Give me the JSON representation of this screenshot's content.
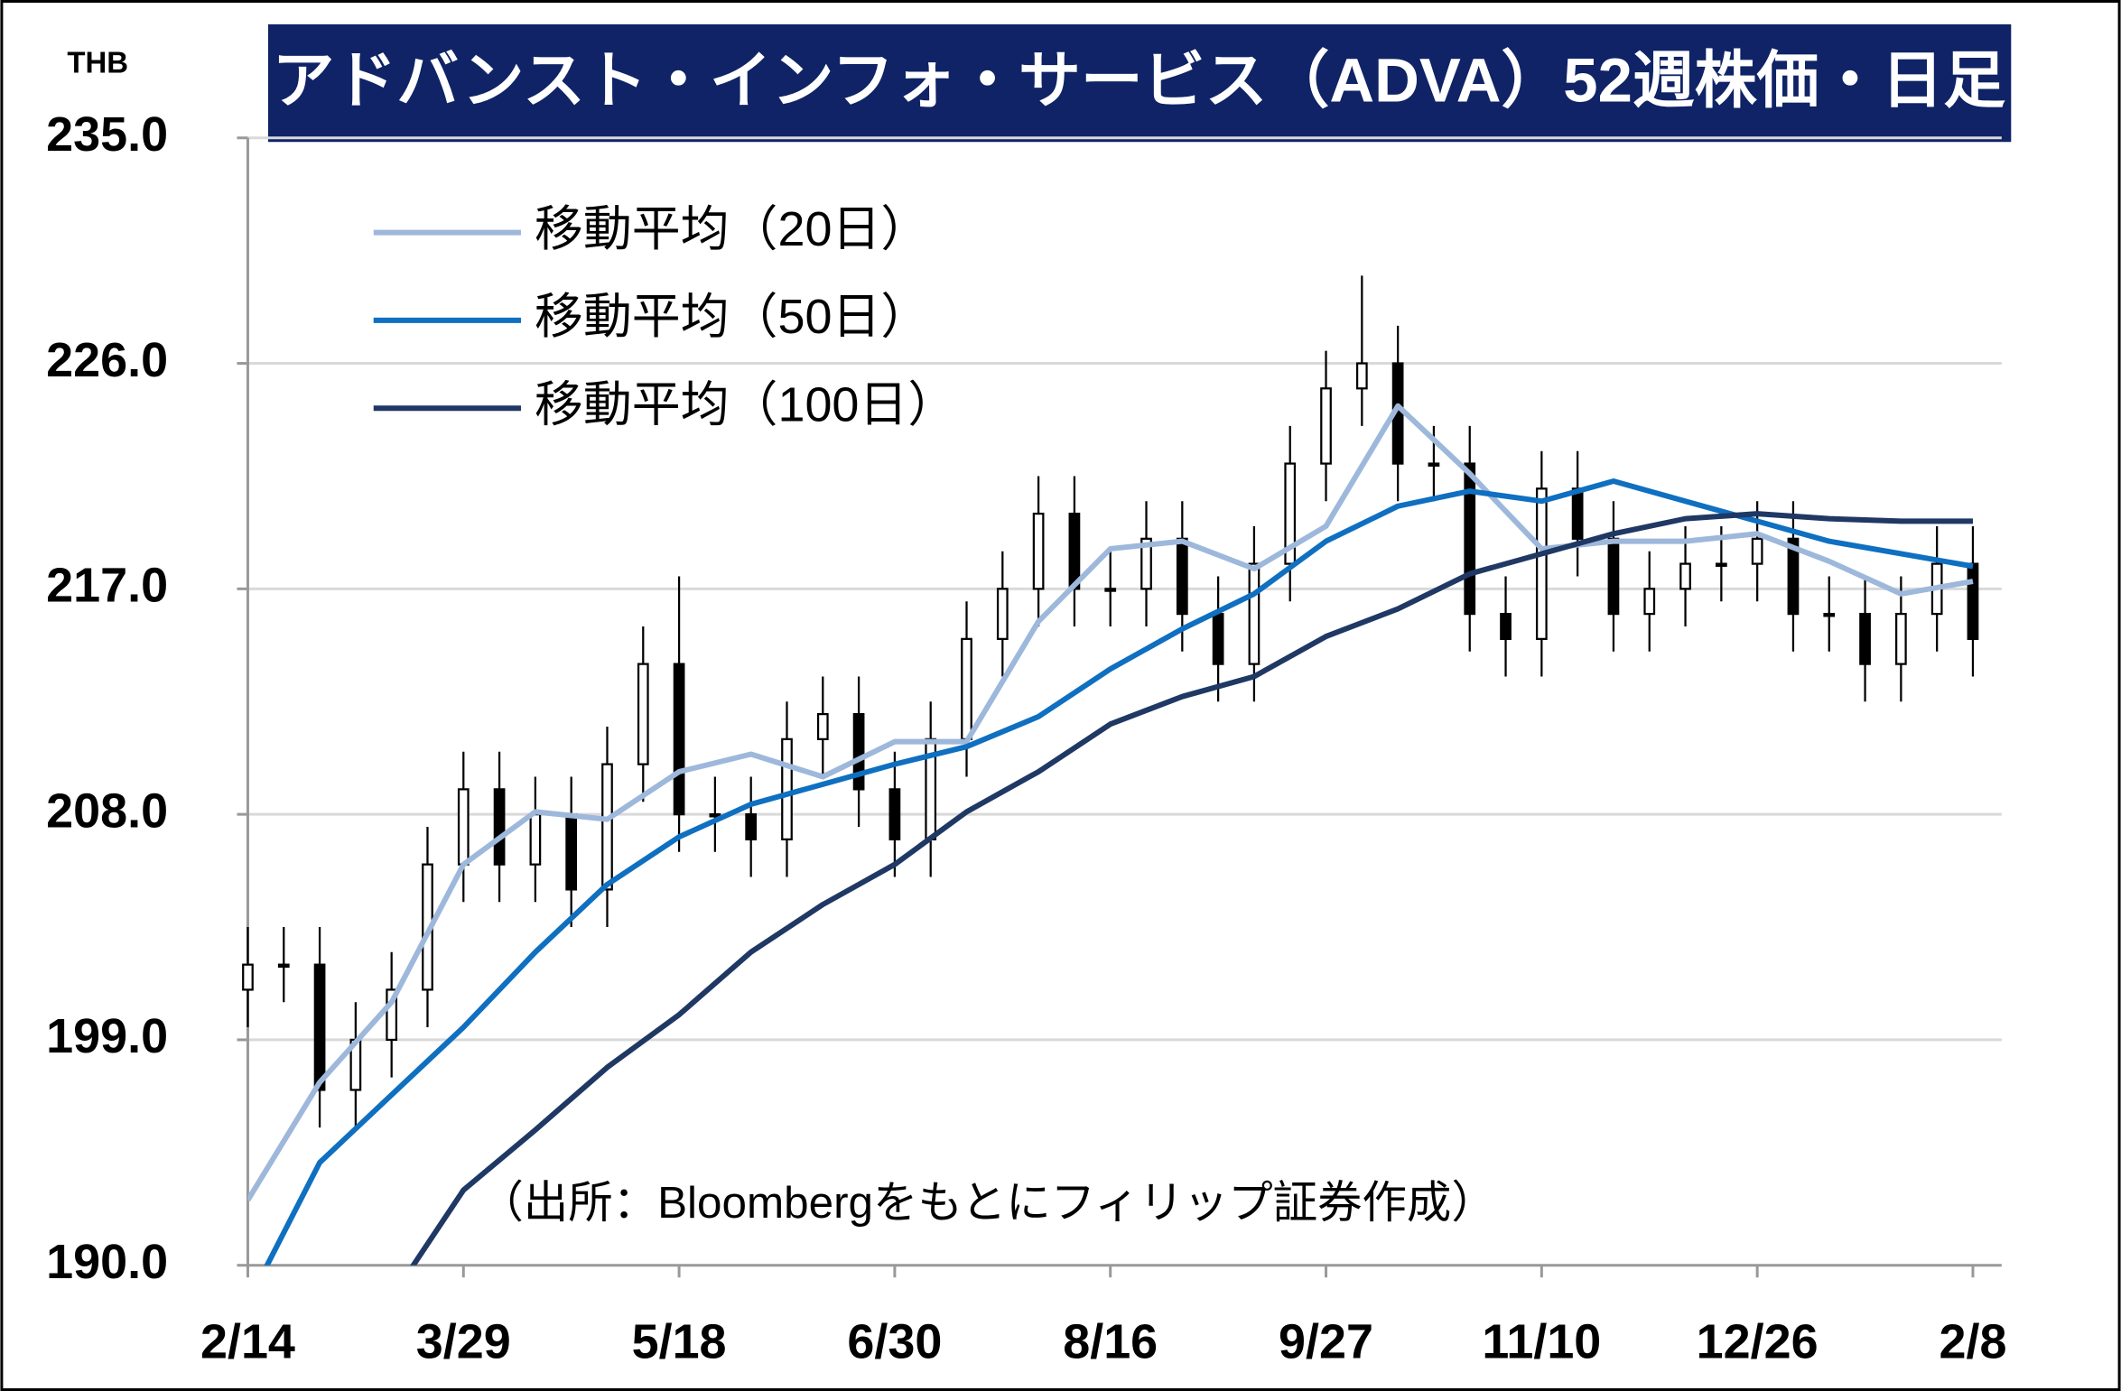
{
  "chart_data": {
    "type": "candlestick",
    "title": "アドバンスト・インフォ・サービス（ADVA）52週株価・日足",
    "y_unit": "THB",
    "note": "（出所：Bloombergをもとにフィリップ証券作成）",
    "xlim": [
      0,
      244
    ],
    "xticks": [
      {
        "value": 0,
        "label": "2/14"
      },
      {
        "value": 30,
        "label": "3/29"
      },
      {
        "value": 60,
        "label": "5/18"
      },
      {
        "value": 90,
        "label": "6/30"
      },
      {
        "value": 120,
        "label": "8/16"
      },
      {
        "value": 150,
        "label": "9/27"
      },
      {
        "value": 180,
        "label": "11/10"
      },
      {
        "value": 210,
        "label": "12/26"
      },
      {
        "value": 240,
        "label": "2/8"
      }
    ],
    "ylim": [
      190,
      235
    ],
    "yticks": [
      {
        "value": 190,
        "label": "190.0"
      },
      {
        "value": 199,
        "label": "199.0"
      },
      {
        "value": 208,
        "label": "208.0"
      },
      {
        "value": 217,
        "label": "217.0"
      },
      {
        "value": 226,
        "label": "226.0"
      },
      {
        "value": 235,
        "label": "235.0"
      }
    ],
    "grid": true,
    "legend_position": "upper left",
    "candles": {
      "up_color": "#ffffff",
      "down_color": "#000000",
      "edge_color": "#000000",
      "x": [
        0,
        5,
        10,
        15,
        20,
        25,
        30,
        35,
        40,
        45,
        50,
        55,
        60,
        65,
        70,
        75,
        80,
        85,
        90,
        95,
        100,
        105,
        110,
        115,
        120,
        125,
        130,
        135,
        140,
        145,
        150,
        155,
        160,
        165,
        170,
        175,
        180,
        185,
        190,
        195,
        200,
        205,
        210,
        215,
        220,
        225,
        230,
        235,
        240
      ],
      "open": [
        201,
        202,
        202,
        197,
        199,
        201,
        206,
        209,
        206,
        208,
        205,
        210,
        214,
        208,
        208,
        207,
        211,
        212,
        209,
        207,
        211,
        215,
        217,
        220,
        217,
        217,
        219,
        216,
        214,
        218,
        222,
        225,
        226,
        222,
        222,
        216,
        215,
        221,
        219,
        216,
        217,
        218,
        218,
        219,
        216,
        216,
        214,
        216,
        218
      ],
      "high": [
        203.5,
        203.5,
        203.5,
        200.5,
        202.5,
        207.5,
        210.5,
        210.5,
        209.5,
        209.5,
        211.5,
        215.5,
        217.5,
        209.5,
        209.5,
        212.5,
        213.5,
        213.5,
        210.5,
        212.5,
        216.5,
        218.5,
        221.5,
        221.5,
        218.5,
        220.5,
        220.5,
        217.5,
        219.5,
        223.5,
        226.5,
        229.5,
        227.5,
        223.5,
        223.5,
        217.5,
        222.5,
        222.5,
        220.5,
        218.5,
        219.5,
        219.5,
        220.5,
        220.5,
        217.5,
        217.5,
        217.5,
        219.5,
        219.5
      ],
      "low": [
        199.5,
        200.5,
        195.5,
        195.5,
        197.5,
        199.5,
        204.5,
        204.5,
        204.5,
        203.5,
        203.5,
        208.5,
        206.5,
        206.5,
        205.5,
        205.5,
        209.5,
        207.5,
        205.5,
        205.5,
        209.5,
        213.5,
        215.5,
        215.5,
        215.5,
        215.5,
        214.5,
        212.5,
        212.5,
        216.5,
        220.5,
        223.5,
        220.5,
        220.5,
        214.5,
        213.5,
        213.5,
        217.5,
        214.5,
        214.5,
        215.5,
        216.5,
        216.5,
        214.5,
        214.5,
        212.5,
        212.5,
        214.5,
        213.5
      ],
      "close": [
        202,
        202,
        197,
        199,
        201,
        206,
        209,
        206,
        208,
        205,
        210,
        214,
        208,
        208,
        207,
        211,
        212,
        209,
        207,
        211,
        215,
        217,
        220,
        217,
        217,
        219,
        216,
        214,
        218,
        222,
        225,
        226,
        222,
        222,
        216,
        215,
        221,
        219,
        216,
        217,
        218,
        218,
        219,
        216,
        216,
        214,
        216,
        218,
        215
      ]
    },
    "series": [
      {
        "name": "移動平均（20日）",
        "color": "#9db8db",
        "x": [
          0,
          10,
          20,
          30,
          40,
          50,
          60,
          70,
          80,
          90,
          100,
          110,
          120,
          130,
          140,
          150,
          160,
          170,
          180,
          190,
          200,
          210,
          220,
          230,
          240
        ],
        "values": [
          192.6,
          197.3,
          200.5,
          206,
          208.1,
          207.8,
          209.7,
          210.4,
          209.5,
          210.9,
          210.9,
          215.7,
          218.6,
          218.9,
          217.8,
          219.5,
          224.3,
          221.6,
          218.6,
          218.9,
          218.9,
          219.2,
          218.1,
          216.8,
          217.3
        ]
      },
      {
        "name": "移動平均（50日）",
        "color": "#0f6fc0",
        "x": [
          0,
          10,
          20,
          30,
          40,
          50,
          60,
          70,
          80,
          90,
          100,
          110,
          120,
          130,
          140,
          150,
          160,
          170,
          180,
          190,
          200,
          210,
          220,
          230,
          240
        ],
        "values": [
          188.5,
          194.1,
          196.8,
          199.5,
          202.5,
          205.2,
          207.1,
          208.4,
          209.2,
          210,
          210.7,
          211.9,
          213.8,
          215.4,
          216.8,
          218.9,
          220.3,
          220.9,
          220.5,
          221.3,
          220.5,
          219.7,
          218.9,
          218.4,
          217.9
        ]
      },
      {
        "name": "移動平均（100日）",
        "color": "#1f3864",
        "x": [
          0,
          10,
          20,
          30,
          40,
          50,
          60,
          70,
          80,
          90,
          100,
          110,
          120,
          130,
          140,
          150,
          160,
          170,
          180,
          190,
          200,
          210,
          220,
          230,
          240
        ],
        "values": [
          null,
          null,
          188.7,
          193,
          195.4,
          197.9,
          200,
          202.5,
          204.4,
          206,
          208.1,
          209.7,
          211.6,
          212.7,
          213.5,
          215.1,
          216.2,
          217.6,
          218.4,
          219.2,
          219.8,
          220,
          219.8,
          219.7,
          219.7
        ]
      }
    ]
  }
}
